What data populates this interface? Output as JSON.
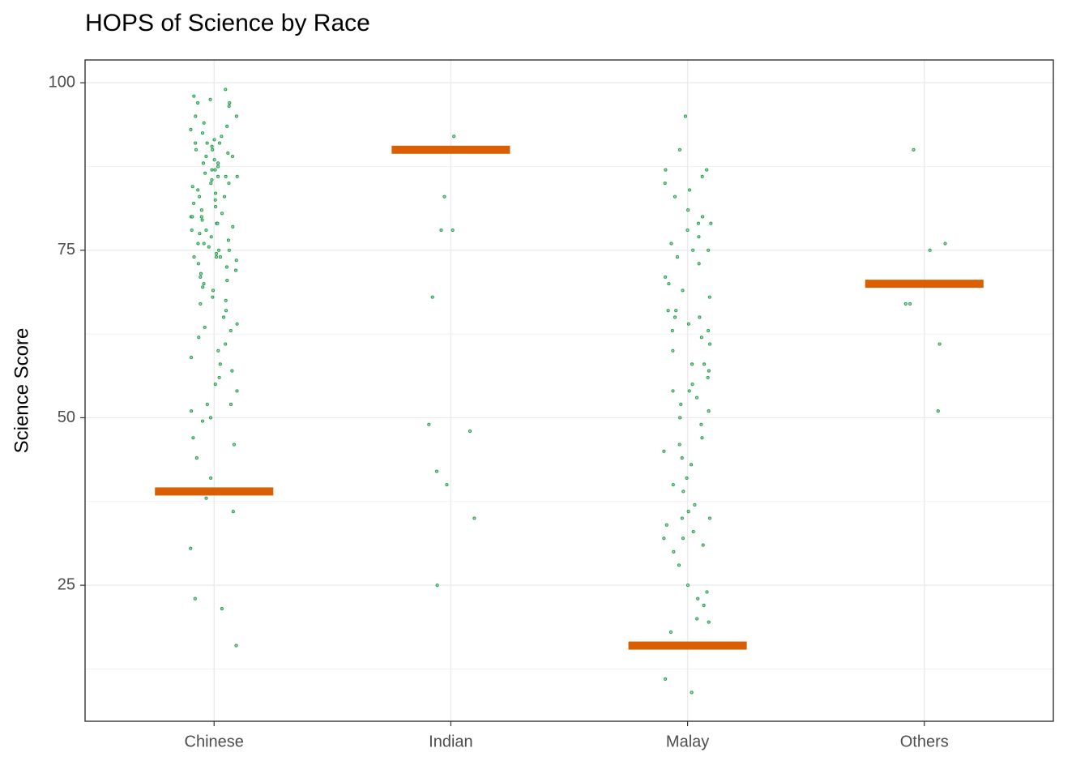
{
  "chart_data": {
    "type": "strip",
    "title": "HOPS of Science by Race",
    "y_label": "Science Score",
    "categories": [
      "Chinese",
      "Indian",
      "Malay",
      "Others"
    ],
    "points": [
      [
        99,
        98,
        97.5,
        97,
        97,
        96.5,
        95,
        95,
        94,
        93.5,
        93,
        92.5,
        92,
        91.5,
        91,
        91,
        91,
        90.5,
        90,
        90,
        89.5,
        89,
        89,
        88.5,
        88,
        88,
        87.5,
        87,
        87,
        86.5,
        86,
        86,
        86,
        85.5,
        85,
        85,
        84.5,
        84,
        83.5,
        83,
        83,
        82.5,
        82,
        81.5,
        81,
        80.5,
        80,
        80,
        80,
        79.5,
        79,
        79,
        78.5,
        78,
        78,
        77.5,
        77,
        76.5,
        76,
        76,
        75.5,
        75,
        75,
        74.5,
        74,
        74,
        74,
        73.5,
        73,
        72.5,
        72,
        71.5,
        71,
        70.5,
        70,
        69.5,
        69,
        68,
        67.5,
        67,
        66,
        65,
        64,
        63.5,
        63,
        62,
        61,
        60,
        59,
        58,
        57,
        56,
        55,
        54,
        52,
        52,
        51,
        50,
        49.5,
        47,
        46,
        44,
        41,
        38,
        36,
        30.5,
        23,
        21.5,
        16
      ],
      [
        92,
        83,
        78,
        78,
        68,
        49,
        48,
        42,
        40,
        35,
        25
      ],
      [
        95,
        90,
        87,
        87,
        86,
        85,
        84,
        83,
        81,
        80,
        79,
        79,
        78,
        77,
        76,
        75,
        75,
        74,
        73,
        71,
        70,
        69,
        68,
        66,
        66,
        65,
        65,
        64,
        63,
        63,
        62,
        61,
        60,
        58,
        58,
        57,
        56,
        55,
        54,
        54,
        53,
        52,
        51,
        50,
        49,
        47,
        46,
        45,
        44,
        43,
        41,
        40,
        39,
        37,
        36,
        35,
        35,
        34,
        33,
        32,
        32,
        31,
        30,
        28,
        25,
        24,
        23,
        22,
        20,
        19.5,
        18,
        11,
        9
      ],
      [
        90,
        76,
        75,
        67,
        67,
        61,
        51
      ]
    ],
    "point_color": "#1a9850",
    "hops_values": [
      39,
      90,
      16,
      70
    ],
    "hops_color": "#d95f02",
    "ylim": [
      4.7,
      103.4
    ],
    "yticks": [
      25,
      50,
      75,
      100
    ],
    "grid": true
  }
}
